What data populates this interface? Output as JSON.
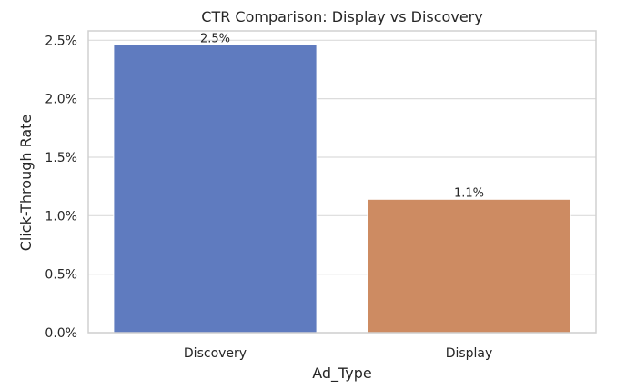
{
  "chart_data": {
    "type": "bar",
    "title": "CTR Comparison: Display vs Discovery",
    "xlabel": "Ad_Type",
    "ylabel": "Click-Through Rate",
    "categories": [
      "Discovery",
      "Display"
    ],
    "values": [
      0.0246,
      0.0114
    ],
    "data_labels": [
      "2.5%",
      "1.1%"
    ],
    "colors": [
      "#5f7bbf",
      "#cd8b62"
    ],
    "ylim": [
      0,
      0.0258
    ],
    "yticks": [
      0,
      0.005,
      0.01,
      0.015,
      0.02,
      0.025
    ],
    "ytick_labels": [
      "0.0%",
      "0.5%",
      "1.0%",
      "1.5%",
      "2.0%",
      "2.5%"
    ],
    "grid": true,
    "grid_axis": "y"
  }
}
